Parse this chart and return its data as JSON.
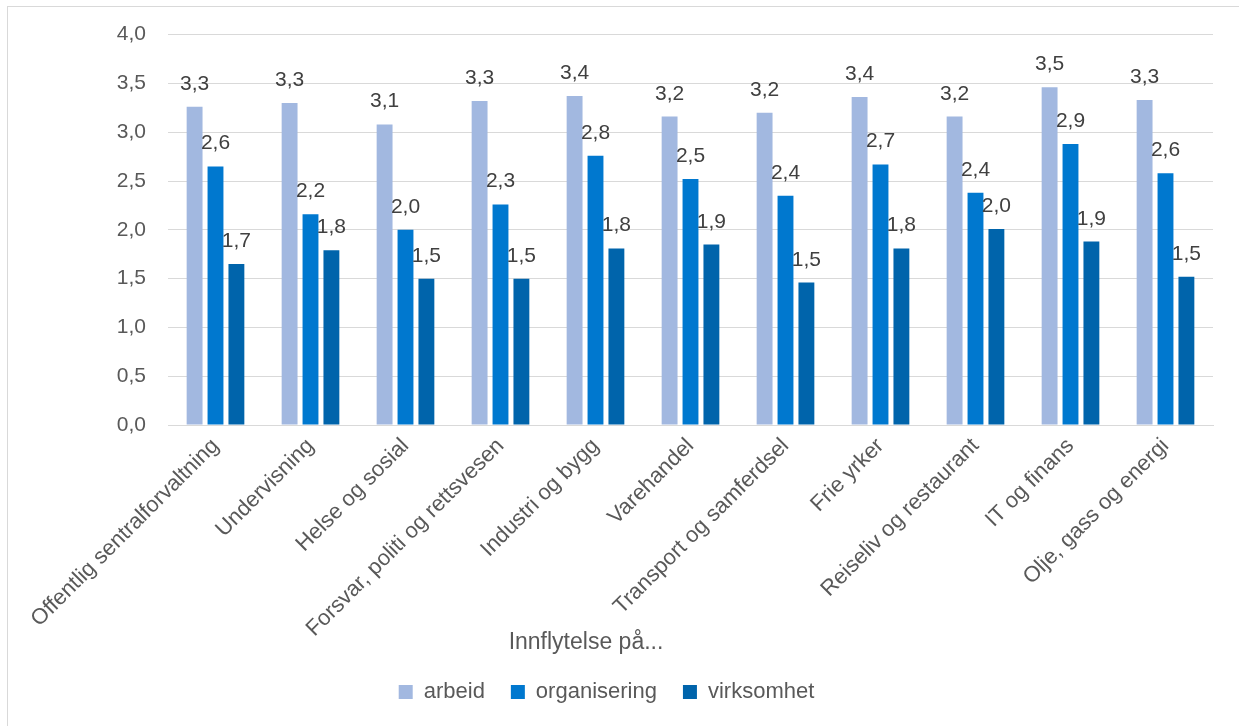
{
  "chart_data": {
    "type": "bar",
    "xlabel": "Innflytelse på...",
    "categories": [
      "Offentlig sentralforvaltning",
      "Undervisning",
      "Helse og sosial",
      "Forsvar, politi og rettsvesen",
      "Industri og bygg",
      "Varehandel",
      "Transport og samferdsel",
      "Frie yrker",
      "Reiseliv og restaurant",
      "IT og finans",
      "Olje, gass og energi"
    ],
    "series": [
      {
        "name": "arbeid",
        "color": "#a2b8e0",
        "values": [
          3.26,
          3.3,
          3.08,
          3.32,
          3.37,
          3.16,
          3.2,
          3.36,
          3.16,
          3.46,
          3.33
        ],
        "value_labels": [
          "3,3",
          "3,3",
          "3,1",
          "3,3",
          "3,4",
          "3,2",
          "3,2",
          "3,4",
          "3,2",
          "3,5",
          "3,3"
        ]
      },
      {
        "name": "organisering",
        "color": "#0078cf",
        "values": [
          2.65,
          2.16,
          2.0,
          2.26,
          2.76,
          2.52,
          2.35,
          2.67,
          2.38,
          2.88,
          2.58
        ],
        "value_labels": [
          "2,6",
          "2,2",
          "2,0",
          "2,3",
          "2,8",
          "2,5",
          "2,4",
          "2,7",
          "2,4",
          "2,9",
          "2,6"
        ]
      },
      {
        "name": "virksomhet",
        "color": "#0064ab",
        "values": [
          1.65,
          1.79,
          1.5,
          1.5,
          1.81,
          1.85,
          1.46,
          1.81,
          2.01,
          1.88,
          1.52
        ],
        "value_labels": [
          "1,7",
          "1,8",
          "1,5",
          "1,5",
          "1,8",
          "1,9",
          "1,5",
          "1,8",
          "2,0",
          "1,9",
          "1,5"
        ]
      }
    ],
    "ylim": [
      0,
      4
    ],
    "yticks": [
      {
        "value": 0,
        "label": "0,0"
      },
      {
        "value": 0.5,
        "label": "0,5"
      },
      {
        "value": 1,
        "label": "1,0"
      },
      {
        "value": 1.5,
        "label": "1,5"
      },
      {
        "value": 2,
        "label": "2,0"
      },
      {
        "value": 2.5,
        "label": "2,5"
      },
      {
        "value": 3,
        "label": "3,0"
      },
      {
        "value": 3.5,
        "label": "3,5"
      },
      {
        "value": 4,
        "label": "4,0"
      }
    ],
    "grid": "y",
    "legend": "bottom"
  }
}
